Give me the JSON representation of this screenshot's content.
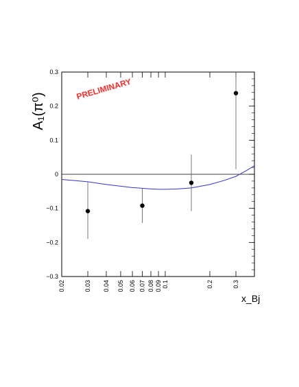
{
  "chart_data": {
    "type": "scatter",
    "title": "",
    "ylabel": "A₁(π⁰)",
    "xlabel": "x_Bj",
    "annotation": "PRELIMINARY",
    "annotation_color": "#ff2a2a",
    "curve_color": "#3333cc",
    "x_scale": "log",
    "xlim": [
      0.02,
      0.4
    ],
    "ylim": [
      -0.3,
      0.3
    ],
    "x_ticks": [
      {
        "value": 0.02,
        "label": "0.02"
      },
      {
        "value": 0.03,
        "label": "0.03"
      },
      {
        "value": 0.04,
        "label": "0.04"
      },
      {
        "value": 0.05,
        "label": "0.05"
      },
      {
        "value": 0.06,
        "label": "0.06"
      },
      {
        "value": 0.07,
        "label": "0.07"
      },
      {
        "value": 0.08,
        "label": "0.08"
      },
      {
        "value": 0.09,
        "label": "0.09"
      },
      {
        "value": 0.1,
        "label": "0.1"
      },
      {
        "value": 0.2,
        "label": "0.2"
      },
      {
        "value": 0.3,
        "label": "0.3"
      }
    ],
    "y_ticks": [
      {
        "value": -0.3,
        "label": "−0.3"
      },
      {
        "value": -0.2,
        "label": "−0.2"
      },
      {
        "value": -0.1,
        "label": "−0.1"
      },
      {
        "value": 0,
        "label": "0"
      },
      {
        "value": 0.1,
        "label": "0.1"
      },
      {
        "value": 0.2,
        "label": "0.2"
      },
      {
        "value": 0.3,
        "label": "0.3"
      }
    ],
    "points": [
      {
        "x": 0.03,
        "y": -0.108,
        "err_low": -0.19,
        "err_high": -0.022
      },
      {
        "x": 0.07,
        "y": -0.092,
        "err_low": -0.143,
        "err_high": -0.04
      },
      {
        "x": 0.15,
        "y": -0.025,
        "err_low": -0.108,
        "err_high": 0.058
      },
      {
        "x": 0.3,
        "y": 0.238,
        "err_low": 0.015,
        "err_high": 0.3
      }
    ],
    "curve": [
      {
        "x": 0.02,
        "y": -0.015
      },
      {
        "x": 0.03,
        "y": -0.022
      },
      {
        "x": 0.04,
        "y": -0.03
      },
      {
        "x": 0.05,
        "y": -0.035
      },
      {
        "x": 0.06,
        "y": -0.039
      },
      {
        "x": 0.07,
        "y": -0.041
      },
      {
        "x": 0.08,
        "y": -0.043
      },
      {
        "x": 0.09,
        "y": -0.044
      },
      {
        "x": 0.1,
        "y": -0.044
      },
      {
        "x": 0.12,
        "y": -0.043
      },
      {
        "x": 0.15,
        "y": -0.04
      },
      {
        "x": 0.2,
        "y": -0.03
      },
      {
        "x": 0.25,
        "y": -0.018
      },
      {
        "x": 0.3,
        "y": -0.006
      },
      {
        "x": 0.35,
        "y": 0.01
      },
      {
        "x": 0.4,
        "y": 0.025
      }
    ]
  }
}
